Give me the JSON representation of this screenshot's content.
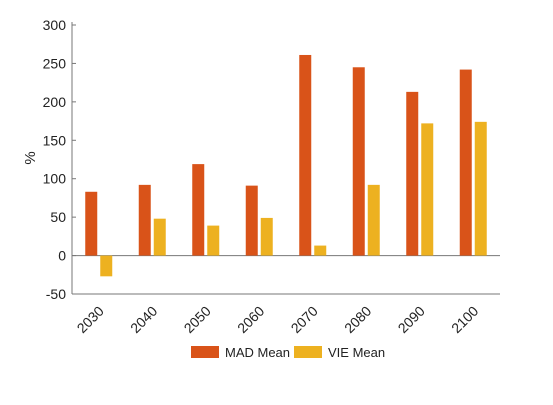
{
  "chart_data": {
    "type": "bar",
    "title": "",
    "xlabel": "",
    "ylabel": "%",
    "ylim": [
      -50,
      300
    ],
    "yticks": [
      -50,
      0,
      50,
      100,
      150,
      200,
      250,
      300
    ],
    "grid": false,
    "legend_position": "bottom",
    "categories": [
      "2030",
      "2040",
      "2050",
      "2060",
      "2070",
      "2080",
      "2090",
      "2100"
    ],
    "series": [
      {
        "name": "MAD Mean",
        "color": "#D95319",
        "values": [
          83,
          92,
          119,
          91,
          261,
          245,
          213,
          242
        ]
      },
      {
        "name": "VIE Mean",
        "color": "#EDB120",
        "values": [
          -27,
          48,
          39,
          49,
          13,
          92,
          172,
          174
        ]
      }
    ]
  }
}
